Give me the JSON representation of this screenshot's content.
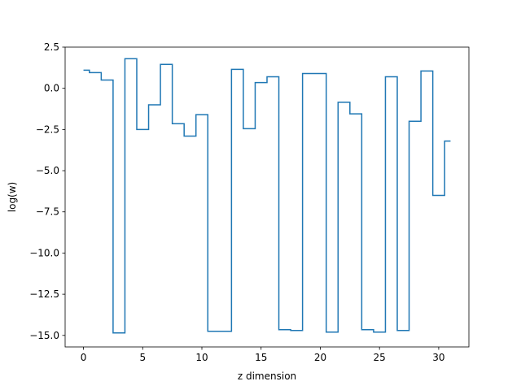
{
  "chart_data": {
    "type": "line",
    "drawstyle": "steps-mid",
    "title": "",
    "xlabel": "z dimension",
    "ylabel": "log(w)",
    "xlim": [
      -1.55,
      32.55
    ],
    "ylim": [
      -15.7,
      2.5
    ],
    "xticks": [
      0,
      5,
      10,
      15,
      20,
      25,
      30
    ],
    "xtick_labels": [
      "0",
      "5",
      "10",
      "15",
      "20",
      "25",
      "30"
    ],
    "yticks": [
      2.5,
      0.0,
      -2.5,
      -5.0,
      -7.5,
      -10.0,
      -12.5,
      -15.0
    ],
    "ytick_labels": [
      "2.5",
      "0.0",
      "−2.5",
      "−5.0",
      "−7.5",
      "−10.0",
      "−12.5",
      "−15.0"
    ],
    "grid": false,
    "series": [
      {
        "color": "#1f77b4",
        "x": [
          0,
          1,
          2,
          3,
          4,
          5,
          6,
          7,
          8,
          9,
          10,
          11,
          12,
          13,
          14,
          15,
          16,
          17,
          18,
          19,
          20,
          21,
          22,
          23,
          24,
          25,
          26,
          27,
          28,
          29,
          30,
          31
        ],
        "y": [
          1.1,
          0.95,
          0.5,
          -14.85,
          1.8,
          -2.5,
          -1.0,
          1.45,
          -2.15,
          -2.9,
          -1.6,
          -14.75,
          -14.75,
          1.15,
          -2.45,
          0.35,
          0.7,
          -14.65,
          -14.7,
          0.9,
          0.9,
          -14.8,
          -0.85,
          -1.55,
          -14.65,
          -14.8,
          0.7,
          -14.7,
          -2.0,
          1.05,
          -6.5,
          -3.2
        ]
      }
    ]
  }
}
